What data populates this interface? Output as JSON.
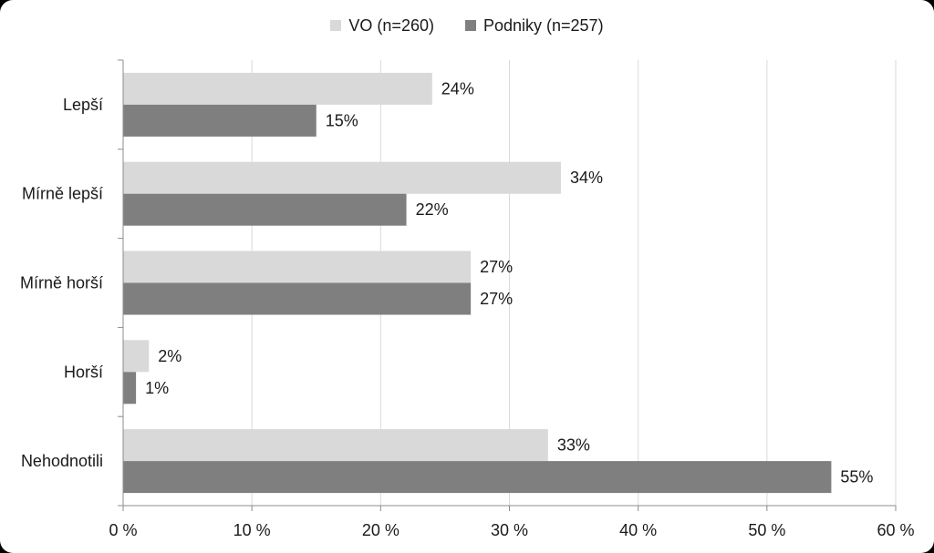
{
  "chart_data": {
    "type": "bar",
    "orientation": "horizontal",
    "categories": [
      "Lepší",
      "Mírně lepší",
      "Mírně horší",
      "Horší",
      "Nehodnotili"
    ],
    "series": [
      {
        "name": "VO (n=260)",
        "values": [
          24,
          34,
          27,
          2,
          33
        ],
        "labels": [
          "24%",
          "34%",
          "27%",
          "2%",
          "33%"
        ],
        "color": "#d9d9d9"
      },
      {
        "name": "Podniky (n=257)",
        "values": [
          15,
          22,
          27,
          1,
          55
        ],
        "labels": [
          "15%",
          "22%",
          "27%",
          "1%",
          "55%"
        ],
        "color": "#7f7f7f"
      }
    ],
    "xlim": [
      0,
      60
    ],
    "xticks": [
      0,
      10,
      20,
      30,
      40,
      50,
      60
    ],
    "xtick_labels": [
      "0 %",
      "10 %",
      "20 %",
      "30 %",
      "40 %",
      "50 %",
      "60 %"
    ],
    "grid": "vertical",
    "legend_position": "top-center"
  }
}
